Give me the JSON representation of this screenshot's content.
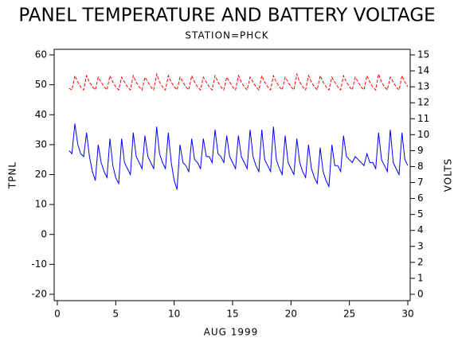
{
  "chart_data": {
    "type": "line",
    "title": "PANEL TEMPERATURE AND BATTERY VOLTAGE",
    "subtitle": "STATION=PHCK",
    "x_label": "AUG 1999",
    "y_label": "TPNL",
    "y2_label": "VOLTS",
    "xlim": [
      0,
      30
    ],
    "xticks": [
      0,
      5,
      10,
      15,
      20,
      25,
      30
    ],
    "ylim": [
      -20,
      60
    ],
    "yticks": [
      -20,
      -10,
      0,
      10,
      20,
      30,
      40,
      50,
      60
    ],
    "y2lim": [
      0,
      15
    ],
    "y2ticks": [
      0,
      1,
      2,
      3,
      4,
      5,
      6,
      7,
      8,
      9,
      10,
      11,
      12,
      13,
      14,
      15
    ],
    "x": [
      1,
      1.25,
      1.5,
      1.75,
      2,
      2.25,
      2.5,
      2.75,
      3,
      3.25,
      3.5,
      3.75,
      4,
      4.25,
      4.5,
      4.75,
      5,
      5.25,
      5.5,
      5.75,
      6,
      6.25,
      6.5,
      6.75,
      7,
      7.25,
      7.5,
      7.75,
      8,
      8.25,
      8.5,
      8.75,
      9,
      9.25,
      9.5,
      9.75,
      10,
      10.25,
      10.5,
      10.75,
      11,
      11.25,
      11.5,
      11.75,
      12,
      12.25,
      12.5,
      12.75,
      13,
      13.25,
      13.5,
      13.75,
      14,
      14.25,
      14.5,
      14.75,
      15,
      15.25,
      15.5,
      15.75,
      16,
      16.25,
      16.5,
      16.75,
      17,
      17.25,
      17.5,
      17.75,
      18,
      18.25,
      18.5,
      18.75,
      19,
      19.25,
      19.5,
      19.75,
      20,
      20.25,
      20.5,
      20.75,
      21,
      21.25,
      21.5,
      21.75,
      22,
      22.25,
      22.5,
      22.75,
      23,
      23.25,
      23.5,
      23.75,
      24,
      24.25,
      24.5,
      24.75,
      25,
      25.25,
      25.5,
      25.75,
      26,
      26.25,
      26.5,
      26.75,
      27,
      27.25,
      27.5,
      27.75,
      28,
      28.25,
      28.5,
      28.75,
      29,
      29.25,
      29.5,
      29.75,
      30
    ],
    "series": [
      {
        "name": "TPNL",
        "color": "#0000ff",
        "linestyle": "solid",
        "values": [
          28,
          27,
          37,
          30,
          27,
          26,
          34,
          26,
          21,
          18,
          30,
          24,
          21,
          19,
          32,
          23,
          19,
          17,
          32,
          24,
          22,
          20,
          34,
          26,
          24,
          22,
          33,
          26,
          24,
          22,
          36,
          27,
          24,
          22,
          34,
          24,
          18,
          15,
          30,
          24,
          23,
          21,
          32,
          25,
          24,
          22,
          32,
          26,
          26,
          24,
          35,
          27,
          26,
          24,
          33,
          26,
          24,
          22,
          33,
          26,
          24,
          22,
          35,
          26,
          23,
          21,
          35,
          25,
          23,
          21,
          36,
          25,
          22,
          20,
          33,
          24,
          22,
          20,
          32,
          24,
          21,
          19,
          30,
          22,
          19,
          17,
          29,
          21,
          18,
          16,
          30,
          23,
          23,
          21,
          33,
          26,
          25,
          24,
          26,
          25,
          24,
          23,
          27,
          24,
          24,
          22,
          34,
          25,
          23,
          21,
          35,
          24,
          22,
          20,
          34,
          25,
          23
        ]
      },
      {
        "name": "VOLTS",
        "color": "#ff0000",
        "linestyle": "dashed",
        "axis": "y2",
        "values": [
          12.9,
          12.8,
          13.7,
          13.3,
          13.0,
          12.8,
          13.7,
          13.3,
          13.0,
          12.8,
          13.6,
          13.3,
          13.0,
          12.8,
          13.7,
          13.3,
          13.0,
          12.8,
          13.6,
          13.3,
          13.0,
          12.8,
          13.7,
          13.3,
          13.0,
          12.8,
          13.6,
          13.3,
          13.0,
          12.8,
          13.8,
          13.3,
          13.0,
          12.8,
          13.7,
          13.3,
          13.0,
          12.8,
          13.6,
          13.3,
          13.0,
          12.8,
          13.7,
          13.3,
          13.0,
          12.8,
          13.6,
          13.3,
          13.0,
          12.8,
          13.7,
          13.3,
          13.0,
          12.8,
          13.6,
          13.3,
          13.0,
          12.8,
          13.7,
          13.3,
          13.0,
          12.8,
          13.6,
          13.3,
          13.0,
          12.8,
          13.7,
          13.3,
          13.0,
          12.8,
          13.7,
          13.3,
          13.0,
          12.8,
          13.6,
          13.3,
          13.0,
          12.8,
          13.8,
          13.3,
          13.0,
          12.8,
          13.7,
          13.3,
          13.0,
          12.8,
          13.7,
          13.3,
          13.0,
          12.8,
          13.6,
          13.3,
          13.0,
          12.8,
          13.7,
          13.3,
          13.0,
          12.8,
          13.6,
          13.3,
          13.0,
          12.8,
          13.7,
          13.3,
          13.0,
          12.8,
          13.8,
          13.3,
          13.0,
          12.8,
          13.6,
          13.3,
          13.0,
          12.8,
          13.7,
          13.3,
          13.0
        ]
      }
    ]
  }
}
